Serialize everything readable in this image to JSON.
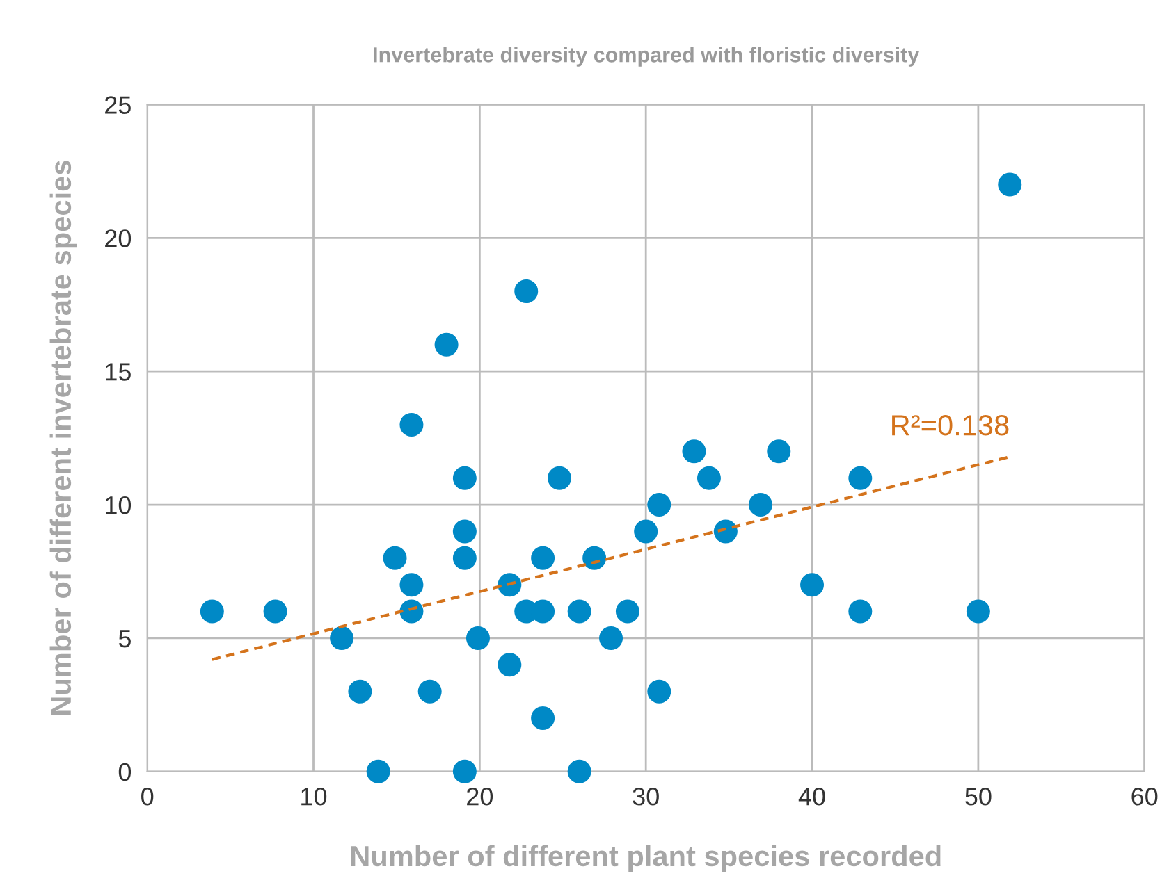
{
  "chart_data": {
    "type": "scatter",
    "title": "Invertebrate diversity compared with floristic diversity",
    "xlabel": "Number of different plant species recorded",
    "ylabel": "Number of different invertebrate species",
    "xlim": [
      0,
      60
    ],
    "xticks": [
      0,
      10,
      20,
      30,
      40,
      50,
      60
    ],
    "ylim": [
      0,
      25
    ],
    "yticks": [
      0,
      5,
      10,
      15,
      20,
      25
    ],
    "grid": true,
    "series": [
      {
        "color": "#0089c6",
        "marker": "circle",
        "x": [
          3.9,
          7.7,
          11.7,
          12.8,
          13.9,
          14.9,
          15.9,
          15.9,
          15.9,
          17.0,
          18.0,
          19.1,
          19.1,
          19.1,
          19.1,
          19.9,
          21.8,
          21.8,
          22.8,
          22.8,
          23.8,
          23.8,
          23.8,
          24.8,
          26.0,
          26.0,
          26.9,
          27.9,
          28.9,
          30.0,
          30.8,
          30.8,
          32.9,
          33.8,
          34.8,
          36.9,
          38.0,
          40.0,
          42.9,
          42.9,
          50.0,
          51.9
        ],
        "values": [
          6,
          6,
          5,
          3,
          0,
          8,
          13,
          7,
          6,
          3,
          16,
          11,
          9,
          8,
          0,
          5,
          7,
          4,
          18,
          6,
          6,
          8,
          2,
          11,
          6,
          0,
          8,
          5,
          6,
          9,
          10,
          3,
          12,
          11,
          9,
          10,
          12,
          7,
          6,
          11,
          6,
          22
        ]
      },
      {
        "type": "line",
        "color": "#d4731c",
        "line_style": "dashed",
        "marker": "none",
        "x": [
          3.9,
          51.9
        ],
        "values": [
          4.2,
          11.8
        ]
      }
    ],
    "annotations": [
      "R²=0.138"
    ]
  }
}
